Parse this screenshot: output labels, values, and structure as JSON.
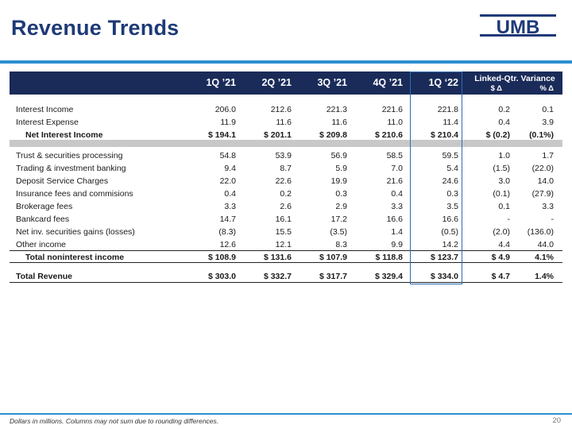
{
  "title": "Revenue Trends",
  "logo_text": "UMB",
  "header": {
    "periods": [
      "1Q ’21",
      "2Q ’21",
      "3Q ’21",
      "4Q ’21",
      "1Q ‘22"
    ],
    "variance_title": "Linked-Qtr. Variance",
    "variance_dollar": "$ Δ",
    "variance_pct": "% Δ"
  },
  "rows": [
    {
      "label": "Interest Income",
      "values": [
        "206.0",
        "212.6",
        "221.3",
        "221.6",
        "221.8",
        "0.2",
        "0.1"
      ]
    },
    {
      "label": "Interest Expense",
      "values": [
        "11.9",
        "11.6",
        "11.6",
        "11.0",
        "11.4",
        "0.4",
        "3.9"
      ]
    },
    {
      "label": "Net Interest Income",
      "values": [
        "$ 194.1",
        "$ 201.1",
        "$ 209.8",
        "$ 210.6",
        "$ 210.4",
        "$ (0.2)",
        "(0.1%)"
      ]
    },
    {
      "label": "Trust & securities processing",
      "values": [
        "54.8",
        "53.9",
        "56.9",
        "58.5",
        "59.5",
        "1.0",
        "1.7"
      ]
    },
    {
      "label": "Trading & investment banking",
      "values": [
        "9.4",
        "8.7",
        "5.9",
        "7.0",
        "5.4",
        "(1.5)",
        "(22.0)"
      ]
    },
    {
      "label": "Deposit Service Charges",
      "values": [
        "22.0",
        "22.6",
        "19.9",
        "21.6",
        "24.6",
        "3.0",
        "14.0"
      ]
    },
    {
      "label": "Insurance fees and commisions",
      "values": [
        "0.4",
        "0.2",
        "0.3",
        "0.4",
        "0.3",
        "(0.1)",
        "(27.9)"
      ]
    },
    {
      "label": "Brokerage fees",
      "values": [
        "3.3",
        "2.6",
        "2.9",
        "3.3",
        "3.5",
        "0.1",
        "3.3"
      ]
    },
    {
      "label": "Bankcard fees",
      "values": [
        "14.7",
        "16.1",
        "17.2",
        "16.6",
        "16.6",
        "-",
        "-"
      ]
    },
    {
      "label": "Net inv. securities gains (losses)",
      "values": [
        "(8.3)",
        "15.5",
        "(3.5)",
        "1.4",
        "(0.5)",
        "(2.0)",
        "(136.0)"
      ]
    },
    {
      "label": "Other income",
      "values": [
        "12.6",
        "12.1",
        "8.3",
        "9.9",
        "14.2",
        "4.4",
        "44.0"
      ]
    },
    {
      "label": "Total noninterest income",
      "values": [
        "$ 108.9",
        "$ 131.6",
        "$ 107.9",
        "$ 118.8",
        "$ 123.7",
        "$ 4.9",
        "4.1%"
      ]
    },
    {
      "label": "Total Revenue",
      "values": [
        "$ 303.0",
        "$ 332.7",
        "$ 317.7",
        "$ 329.4",
        "$ 334.0",
        "$ 4.7",
        "1.4%"
      ]
    }
  ],
  "footnote": "Dollars in millions. Columns may not sum due to rounding differences.",
  "page_number": "20"
}
